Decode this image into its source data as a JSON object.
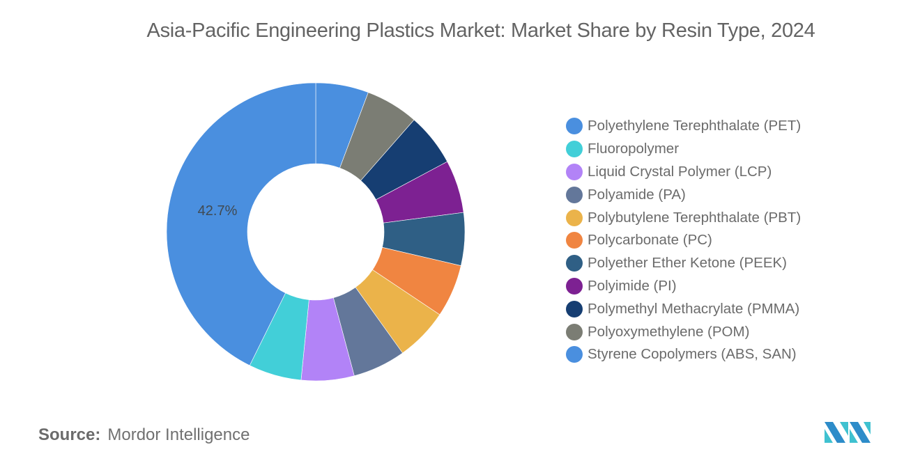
{
  "title": "Asia-Pacific Engineering Plastics Market: Market Share by Resin Type, 2024",
  "source": {
    "label": "Source:",
    "value": "Mordor Intelligence"
  },
  "logo": "mordor-intelligence-logo",
  "legend": [
    {
      "label": "Polyethylene Terephthalate (PET)",
      "color": "#4a8fdf"
    },
    {
      "label": "Fluoropolymer",
      "color": "#42cfd8"
    },
    {
      "label": "Liquid Crystal Polymer (LCP)",
      "color": "#b283f7"
    },
    {
      "label": "Polyamide (PA)",
      "color": "#63779a"
    },
    {
      "label": "Polybutylene Terephthalate (PBT)",
      "color": "#ebb34a"
    },
    {
      "label": "Polycarbonate (PC)",
      "color": "#f08541"
    },
    {
      "label": "Polyether Ether Ketone (PEEK)",
      "color": "#2f5f85"
    },
    {
      "label": "Polyimide (PI)",
      "color": "#7d2192"
    },
    {
      "label": "Polymethyl Methacrylate (PMMA)",
      "color": "#163e72"
    },
    {
      "label": "Polyoxymethylene (POM)",
      "color": "#7b7d74"
    },
    {
      "label": "Styrene Copolymers (ABS, SAN)",
      "color": "#4a8fdf"
    }
  ],
  "chart_data": {
    "type": "pie",
    "subtype": "donut",
    "title": "Asia-Pacific Engineering Plastics Market: Market Share by Resin Type, 2024",
    "categories": [
      "Polyethylene Terephthalate (PET)",
      "Fluoropolymer",
      "Liquid Crystal Polymer (LCP)",
      "Polyamide (PA)",
      "Polybutylene Terephthalate (PBT)",
      "Polycarbonate (PC)",
      "Polyether Ether Ketone (PEEK)",
      "Polyimide (PI)",
      "Polymethyl Methacrylate (PMMA)",
      "Polyoxymethylene (POM)",
      "Styrene Copolymers (ABS, SAN)"
    ],
    "values": [
      42.7,
      5.73,
      5.73,
      5.73,
      5.73,
      5.73,
      5.73,
      5.73,
      5.73,
      5.73,
      5.73
    ],
    "unit": "%",
    "data_labels": [
      {
        "category": "Polyethylene Terephthalate (PET)",
        "text": "42.7%"
      }
    ],
    "drawing_order": "clockwise from 12 o'clock, reverse legend order (Styrene first, PET last)",
    "legend_position": "right",
    "source": "Mordor Intelligence"
  }
}
